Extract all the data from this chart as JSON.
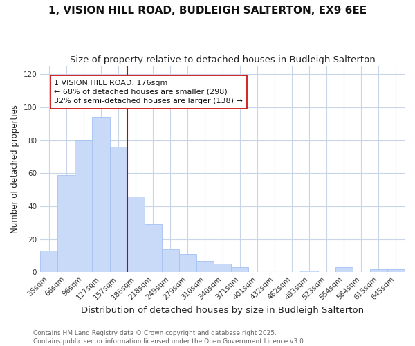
{
  "title": "1, VISION HILL ROAD, BUDLEIGH SALTERTON, EX9 6EE",
  "subtitle": "Size of property relative to detached houses in Budleigh Salterton",
  "xlabel": "Distribution of detached houses by size in Budleigh Salterton",
  "ylabel": "Number of detached properties",
  "categories": [
    "35sqm",
    "66sqm",
    "96sqm",
    "127sqm",
    "157sqm",
    "188sqm",
    "218sqm",
    "249sqm",
    "279sqm",
    "310sqm",
    "340sqm",
    "371sqm",
    "401sqm",
    "432sqm",
    "462sqm",
    "493sqm",
    "523sqm",
    "554sqm",
    "584sqm",
    "615sqm",
    "645sqm"
  ],
  "values": [
    13,
    59,
    80,
    94,
    76,
    46,
    29,
    14,
    11,
    7,
    5,
    3,
    0,
    0,
    0,
    1,
    0,
    3,
    0,
    2,
    2
  ],
  "bar_color": "#c9daf8",
  "bar_edge_color": "#a4c2f4",
  "vline_index": 5,
  "vline_color": "#cc0000",
  "annotation_text": "1 VISION HILL ROAD: 176sqm\n← 68% of detached houses are smaller (298)\n32% of semi-detached houses are larger (138) →",
  "annotation_box_color": "white",
  "annotation_box_edge": "#cc0000",
  "ylim": [
    0,
    125
  ],
  "yticks": [
    0,
    20,
    40,
    60,
    80,
    100,
    120
  ],
  "grid_color": "#c8d4e8",
  "background_color": "#ffffff",
  "plot_bg_color": "#ffffff",
  "footer": "Contains HM Land Registry data © Crown copyright and database right 2025.\nContains public sector information licensed under the Open Government Licence v3.0.",
  "title_fontsize": 11,
  "subtitle_fontsize": 9.5,
  "xlabel_fontsize": 9.5,
  "ylabel_fontsize": 8.5,
  "tick_fontsize": 7.5,
  "annotation_fontsize": 8,
  "footer_fontsize": 6.5
}
